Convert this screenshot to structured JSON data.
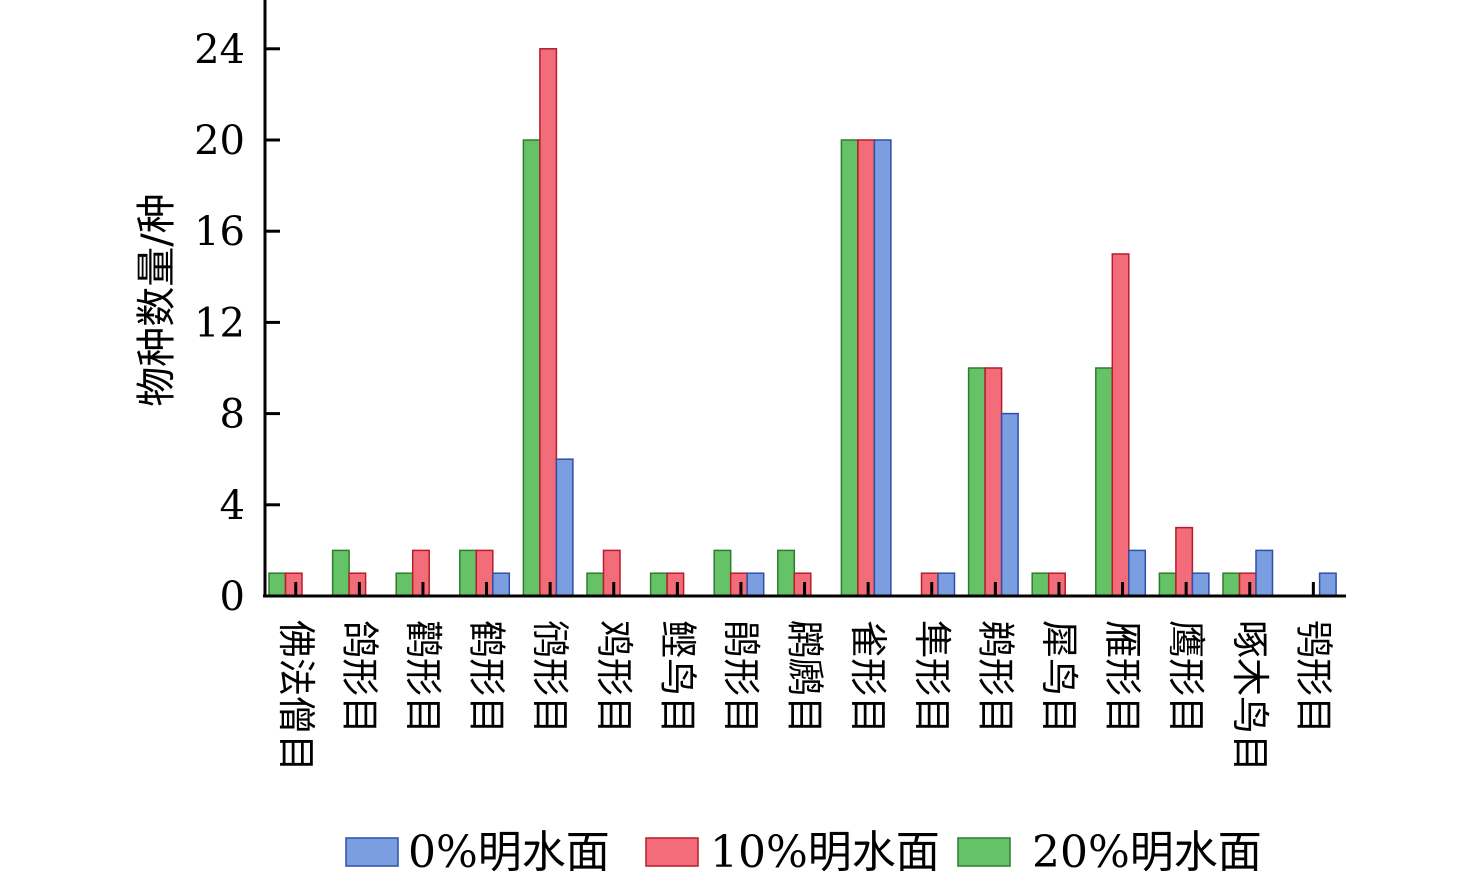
{
  "chart_data": {
    "type": "bar",
    "ylabel": "物种数量/种",
    "xlabel": "",
    "ylim": [
      0,
      26
    ],
    "yticks": [
      0,
      4,
      8,
      12,
      16,
      20,
      24
    ],
    "categories": [
      "佛法僧目",
      "鸽形目",
      "鹳形目",
      "鹤形目",
      "鸻形目",
      "鸡形目",
      "鲣鸟目",
      "鹃形目",
      "䴙䴘目",
      "雀形目",
      "隼形目",
      "鹈形目",
      "犀鸟目",
      "雁形目",
      "鹰形目",
      "啄木鸟目",
      "鸮形目"
    ],
    "series": [
      {
        "name": "20%明水面",
        "color": "#66c266",
        "stroke": "#2e7d2e",
        "values": [
          1,
          2,
          1,
          2,
          20,
          1,
          1,
          2,
          2,
          20,
          0,
          10,
          1,
          10,
          1,
          1,
          0
        ]
      },
      {
        "name": "10%明水面",
        "color": "#f26d79",
        "stroke": "#b81c2c",
        "values": [
          1,
          1,
          2,
          2,
          24,
          2,
          1,
          1,
          1,
          20,
          1,
          10,
          1,
          15,
          3,
          1,
          0
        ]
      },
      {
        "name": "0%明水面",
        "color": "#7b9ee0",
        "stroke": "#2f4fa8",
        "values": [
          0,
          0,
          0,
          1,
          6,
          0,
          0,
          1,
          0,
          20,
          1,
          8,
          0,
          2,
          1,
          2,
          1
        ]
      }
    ],
    "legend": {
      "placement": "bottom",
      "order": [
        "0%明水面",
        "10%明水面",
        "20%明水面"
      ]
    },
    "grid": false
  }
}
